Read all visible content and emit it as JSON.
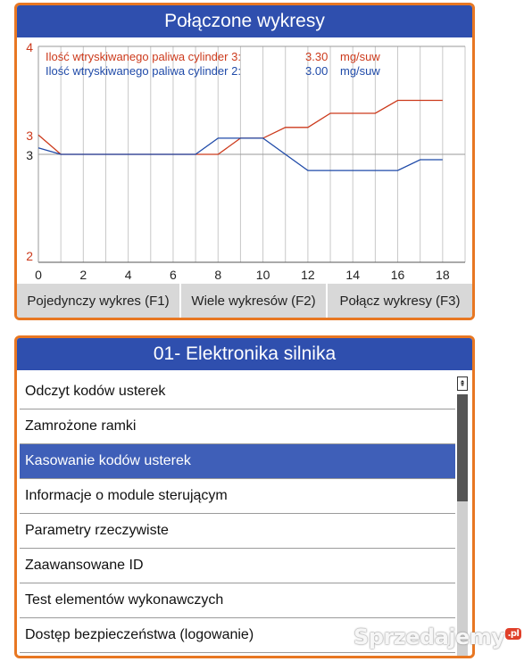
{
  "chart_panel": {
    "title": "Połączone wykresy",
    "fkeys": [
      "Pojedynczy wykres (F1)",
      "Wiele wykresów (F2)",
      "Połącz wykresy (F3)"
    ]
  },
  "chart_data": {
    "type": "line",
    "xlim": [
      0,
      19
    ],
    "x_ticks": [
      0,
      2,
      4,
      6,
      8,
      10,
      12,
      14,
      16,
      18
    ],
    "y_left_ticks": [
      "4",
      "3",
      "3",
      "2"
    ],
    "grid": true,
    "legend_position": "top-left",
    "series": [
      {
        "name": "Ilość wtryskiwanego paliwa cylinder 3:",
        "value": "3.30",
        "unit": "mg/suw",
        "color": "#cc3a1c",
        "x": [
          0,
          1,
          2,
          3,
          4,
          5,
          6,
          7,
          8,
          9,
          10,
          11,
          12,
          13,
          14,
          15,
          16,
          17,
          18
        ],
        "y": [
          3.18,
          3.0,
          3.0,
          3.0,
          3.0,
          3.0,
          3.0,
          3.0,
          3.0,
          3.15,
          3.15,
          3.25,
          3.25,
          3.38,
          3.38,
          3.38,
          3.5,
          3.5,
          3.5
        ]
      },
      {
        "name": "Ilość wtryskiwanego paliwa cylinder 2:",
        "value": "3.00",
        "unit": "mg/suw",
        "color": "#1f4aa8",
        "x": [
          0,
          1,
          2,
          3,
          4,
          5,
          6,
          7,
          8,
          9,
          10,
          11,
          12,
          13,
          14,
          15,
          16,
          17,
          18
        ],
        "y": [
          3.06,
          3.0,
          3.0,
          3.0,
          3.0,
          3.0,
          3.0,
          3.0,
          3.15,
          3.15,
          3.15,
          3.0,
          2.85,
          2.85,
          2.85,
          2.85,
          2.85,
          2.95,
          2.95
        ]
      }
    ]
  },
  "menu_panel": {
    "title": "01- Elektronika silnika",
    "items": [
      "Odczyt kodów usterek",
      "Zamrożone ramki",
      "Kasowanie kodów usterek",
      "Informacje o module sterującym",
      "Parametry rzeczywiste",
      "Zaawansowane ID",
      "Test elementów wykonawczych",
      "Dostęp bezpieczeństwa (logowanie)"
    ],
    "selected_index": 2,
    "scroll_up_glyph": "⇞"
  },
  "watermark": {
    "text": "Sprzedajemy",
    "suffix": ".pl"
  },
  "colors": {
    "border": "#e87722",
    "header": "#2f4fae",
    "selected": "#3f5fb8",
    "series_red": "#cc3a1c",
    "series_blue": "#1f4aa8"
  }
}
